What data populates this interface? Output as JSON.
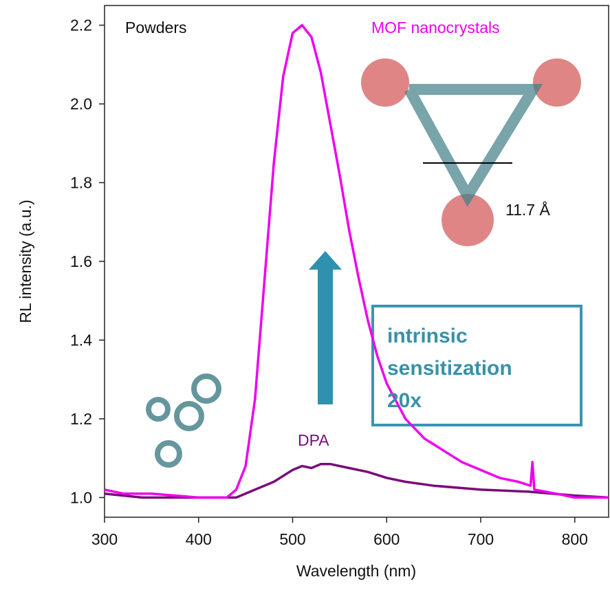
{
  "chart_data": {
    "type": "line",
    "xlabel": "Wavelength (nm)",
    "ylabel": "RL intensity (a.u.)",
    "xlim": [
      300,
      836
    ],
    "ylim": [
      0.95,
      2.25
    ],
    "xticks": [
      300,
      400,
      500,
      600,
      700,
      800
    ],
    "yticks": [
      {
        "value": 1.0,
        "label": "1.0"
      },
      1.2,
      1.4,
      1.6,
      1.8,
      {
        "value": 2.0,
        "label": "2.0"
      },
      2.2
    ],
    "series": [
      {
        "name": "MOF nanocrystals",
        "color": "#ee00ee",
        "x": [
          300,
          320,
          350,
          400,
          430,
          440,
          450,
          460,
          470,
          480,
          490,
          500,
          510,
          520,
          530,
          540,
          550,
          560,
          570,
          580,
          590,
          600,
          620,
          640,
          660,
          680,
          700,
          720,
          740,
          753,
          755,
          757,
          780,
          800,
          836
        ],
        "values": [
          1.02,
          1.01,
          1.01,
          1.0,
          1.0,
          1.02,
          1.08,
          1.25,
          1.55,
          1.85,
          2.07,
          2.18,
          2.2,
          2.17,
          2.08,
          1.95,
          1.82,
          1.68,
          1.56,
          1.45,
          1.36,
          1.29,
          1.2,
          1.15,
          1.12,
          1.09,
          1.07,
          1.05,
          1.04,
          1.03,
          1.09,
          1.02,
          1.01,
          1.0,
          1.0
        ]
      },
      {
        "name": "DPA",
        "color": "#7a0a7a",
        "x": [
          300,
          340,
          400,
          440,
          460,
          480,
          500,
          510,
          520,
          530,
          540,
          560,
          580,
          600,
          620,
          650,
          700,
          750,
          800,
          836
        ],
        "values": [
          1.01,
          1.0,
          1.0,
          1.0,
          1.02,
          1.04,
          1.07,
          1.08,
          1.075,
          1.085,
          1.085,
          1.075,
          1.065,
          1.05,
          1.04,
          1.03,
          1.02,
          1.015,
          1.005,
          1.0
        ]
      }
    ],
    "annotations": {
      "sample": "Powders",
      "distance": "11.7 Å",
      "sensitization": [
        "intrinsic",
        "sensitization",
        "20x"
      ]
    }
  }
}
